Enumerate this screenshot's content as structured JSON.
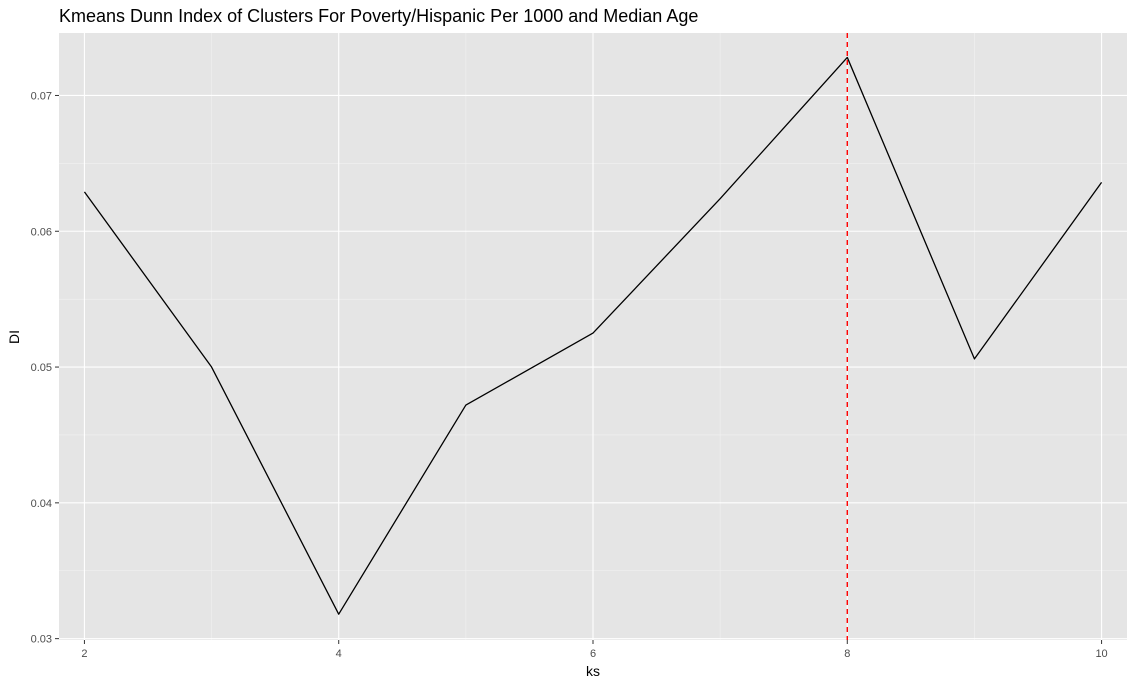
{
  "chart_data": {
    "type": "line",
    "title": "Kmeans Dunn Index of Clusters For Poverty/Hispanic Per 1000 and Median Age",
    "xlabel": "ks",
    "ylabel": "DI",
    "x": [
      2,
      3,
      4,
      5,
      6,
      7,
      8,
      9,
      10
    ],
    "series": [
      {
        "values": [
          0.0629,
          0.05,
          0.0318,
          0.0472,
          0.0525,
          0.0624,
          0.0728,
          0.0506,
          0.0636
        ]
      }
    ],
    "xlim": [
      1.8,
      10.2
    ],
    "ylim": [
      0.0299,
      0.0746
    ],
    "x_ticks": [
      2,
      4,
      6,
      8,
      10
    ],
    "x_tick_labels": [
      "2",
      "4",
      "6",
      "8",
      "10"
    ],
    "y_ticks": [
      0.03,
      0.04,
      0.05,
      0.06,
      0.07
    ],
    "y_tick_labels": [
      "0.03",
      "0.04",
      "0.05",
      "0.06",
      "0.07"
    ],
    "vline": {
      "x": 8,
      "color": "#ff0000",
      "style": "dashed"
    },
    "grid": true,
    "colors": {
      "panel_background": "#e5e5e5",
      "grid_major": "#ffffff",
      "line": "#000000",
      "vline": "#ff0000"
    }
  }
}
